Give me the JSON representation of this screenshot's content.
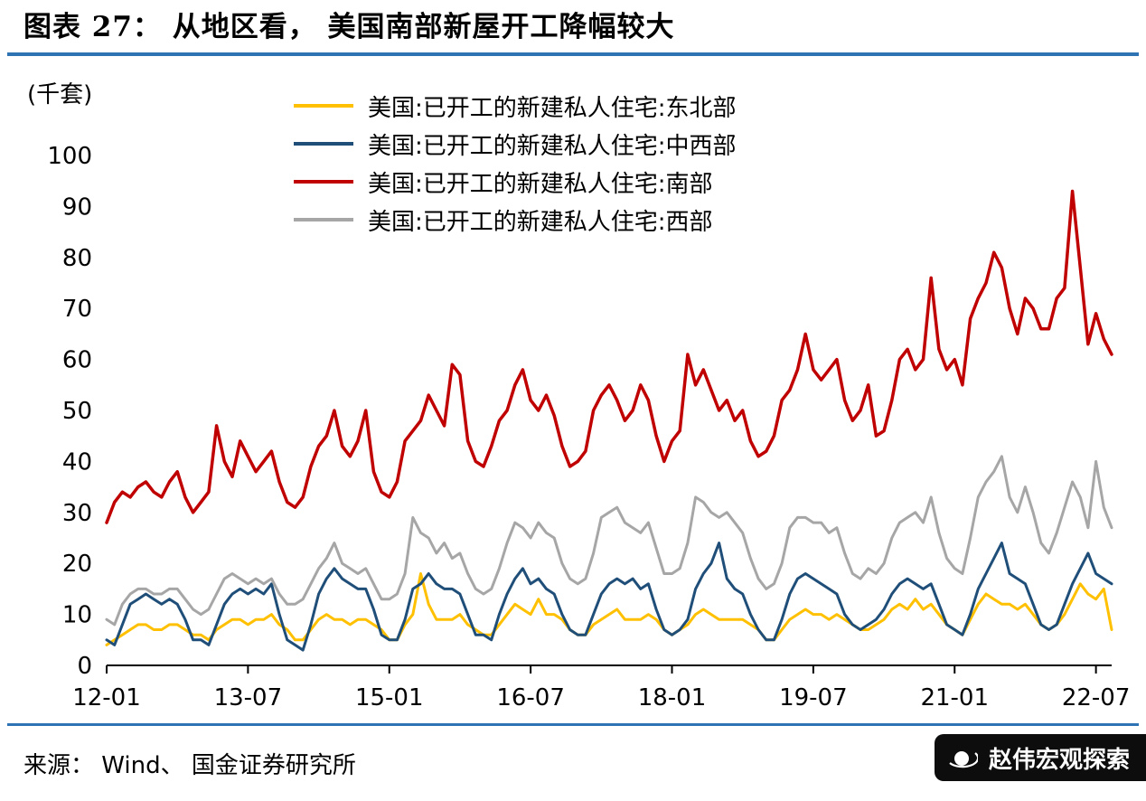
{
  "title": "图表 27： 从地区看， 美国南部新屋开工降幅较大",
  "unit_label": "(千套)",
  "source": "来源： Wind、 国金证券研究所",
  "badge": {
    "text": "赵伟宏观探索"
  },
  "colors": {
    "accent_rule": "#2E74B5",
    "axis": "#000000",
    "badge_bg": "#0d0d0d",
    "badge_text": "#FFFFFF",
    "northeast": "#FFC000",
    "midwest": "#1F4E79",
    "south": "#C00000",
    "west": "#A6A6A6"
  },
  "chart_data": {
    "type": "line",
    "title": "从地区看，美国南部新屋开工降幅较大",
    "ylabel": "(千套)",
    "ylim": [
      0,
      100
    ],
    "y_step": 10,
    "grid": false,
    "legend_position": "top",
    "x_unit": "year-month",
    "n_points": 129,
    "x_range": [
      "12-01",
      "22-09"
    ],
    "x_ticks": [
      {
        "i": 0,
        "label": "12-01"
      },
      {
        "i": 18,
        "label": "13-07"
      },
      {
        "i": 36,
        "label": "15-01"
      },
      {
        "i": 54,
        "label": "16-07"
      },
      {
        "i": 72,
        "label": "18-01"
      },
      {
        "i": 90,
        "label": "19-07"
      },
      {
        "i": 108,
        "label": "21-01"
      },
      {
        "i": 126,
        "label": "22-07"
      }
    ],
    "series": [
      {
        "key": "northeast",
        "name": "美国:已开工的新建私人住宅:东北部",
        "color": "#FFC000",
        "width": 3,
        "values": [
          4,
          5,
          6,
          7,
          8,
          8,
          7,
          7,
          8,
          8,
          7,
          6,
          6,
          5,
          7,
          8,
          9,
          9,
          8,
          9,
          9,
          10,
          8,
          7,
          5,
          5,
          7,
          9,
          10,
          9,
          9,
          8,
          9,
          9,
          8,
          7,
          5,
          5,
          8,
          10,
          18,
          12,
          9,
          9,
          9,
          10,
          8,
          7,
          6,
          6,
          8,
          10,
          12,
          11,
          10,
          13,
          10,
          10,
          9,
          7,
          6,
          6,
          8,
          9,
          10,
          11,
          9,
          9,
          9,
          10,
          9,
          7,
          6,
          7,
          8,
          10,
          11,
          10,
          9,
          9,
          9,
          9,
          8,
          7,
          5,
          5,
          7,
          9,
          10,
          11,
          10,
          10,
          9,
          10,
          9,
          8,
          7,
          7,
          8,
          9,
          11,
          12,
          11,
          13,
          11,
          12,
          10,
          8,
          7,
          6,
          9,
          12,
          14,
          13,
          12,
          12,
          11,
          12,
          10,
          8,
          7,
          8,
          10,
          13,
          16,
          14,
          13,
          15,
          7
        ]
      },
      {
        "key": "midwest",
        "name": "美国:已开工的新建私人住宅:中西部",
        "color": "#1F4E79",
        "width": 3,
        "values": [
          5,
          4,
          8,
          12,
          13,
          14,
          13,
          12,
          13,
          12,
          9,
          5,
          5,
          4,
          8,
          12,
          14,
          15,
          14,
          15,
          14,
          16,
          10,
          5,
          4,
          3,
          8,
          14,
          17,
          19,
          17,
          16,
          15,
          15,
          11,
          6,
          5,
          5,
          9,
          15,
          16,
          18,
          16,
          15,
          15,
          14,
          10,
          6,
          6,
          5,
          10,
          14,
          17,
          19,
          16,
          17,
          15,
          14,
          10,
          7,
          6,
          6,
          10,
          14,
          16,
          17,
          16,
          17,
          15,
          16,
          11,
          7,
          6,
          7,
          9,
          15,
          18,
          20,
          24,
          17,
          15,
          14,
          10,
          7,
          5,
          5,
          9,
          14,
          17,
          18,
          17,
          16,
          15,
          14,
          10,
          8,
          7,
          8,
          9,
          11,
          14,
          16,
          17,
          16,
          15,
          16,
          12,
          8,
          7,
          6,
          10,
          15,
          18,
          21,
          24,
          18,
          17,
          16,
          12,
          8,
          7,
          8,
          12,
          16,
          19,
          22,
          18,
          17,
          16
        ]
      },
      {
        "key": "south",
        "name": "美国:已开工的新建私人住宅:南部",
        "color": "#C00000",
        "width": 3.5,
        "values": [
          28,
          32,
          34,
          33,
          35,
          36,
          34,
          33,
          36,
          38,
          33,
          30,
          32,
          34,
          47,
          40,
          37,
          44,
          41,
          38,
          40,
          42,
          36,
          32,
          31,
          33,
          39,
          43,
          45,
          50,
          43,
          41,
          44,
          50,
          38,
          34,
          33,
          36,
          44,
          46,
          48,
          53,
          50,
          47,
          59,
          57,
          44,
          40,
          39,
          43,
          48,
          50,
          55,
          58,
          52,
          50,
          53,
          49,
          43,
          39,
          40,
          42,
          50,
          53,
          55,
          52,
          48,
          50,
          55,
          52,
          45,
          40,
          44,
          46,
          61,
          55,
          58,
          54,
          50,
          52,
          48,
          50,
          44,
          41,
          42,
          45,
          52,
          54,
          58,
          65,
          58,
          56,
          58,
          60,
          52,
          48,
          50,
          55,
          45,
          46,
          52,
          60,
          62,
          58,
          60,
          76,
          62,
          58,
          60,
          55,
          68,
          72,
          75,
          81,
          78,
          70,
          65,
          72,
          70,
          66,
          66,
          72,
          74,
          93,
          78,
          63,
          69,
          64,
          61
        ]
      },
      {
        "key": "west",
        "name": "美国:已开工的新建私人住宅:西部",
        "color": "#A6A6A6",
        "width": 3,
        "values": [
          9,
          8,
          12,
          14,
          15,
          15,
          14,
          14,
          15,
          15,
          13,
          11,
          10,
          11,
          14,
          17,
          18,
          17,
          16,
          17,
          16,
          17,
          14,
          12,
          12,
          13,
          16,
          19,
          21,
          24,
          20,
          19,
          18,
          19,
          16,
          13,
          13,
          14,
          18,
          29,
          26,
          25,
          22,
          24,
          21,
          22,
          18,
          15,
          14,
          15,
          19,
          24,
          28,
          27,
          25,
          28,
          26,
          25,
          20,
          17,
          16,
          17,
          22,
          29,
          30,
          31,
          28,
          27,
          26,
          28,
          23,
          18,
          18,
          19,
          24,
          33,
          32,
          30,
          29,
          30,
          28,
          26,
          21,
          17,
          15,
          16,
          20,
          27,
          29,
          29,
          28,
          28,
          26,
          27,
          22,
          18,
          17,
          19,
          18,
          20,
          25,
          28,
          29,
          30,
          28,
          33,
          26,
          21,
          19,
          18,
          25,
          33,
          36,
          38,
          41,
          33,
          30,
          35,
          30,
          24,
          22,
          26,
          31,
          36,
          33,
          27,
          40,
          31,
          27
        ]
      }
    ]
  }
}
